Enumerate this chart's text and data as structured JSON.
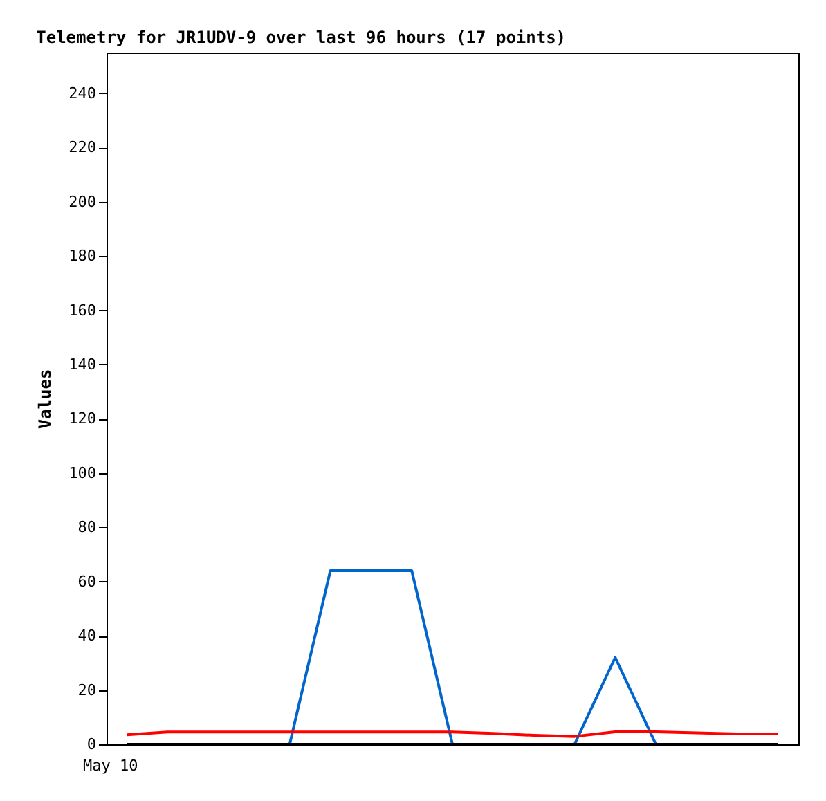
{
  "chart_data": {
    "type": "line",
    "title": "Telemetry for JR1UDV-9 over last 96 hours (17 points)",
    "ylabel": "Values",
    "categories": [
      null,
      null,
      null,
      null,
      null,
      null,
      null,
      null,
      null,
      null,
      null,
      null,
      null,
      null,
      null,
      null,
      null
    ],
    "series": [
      {
        "color": "#0066cc",
        "values": [
          null,
          null,
          null,
          null,
          0,
          64,
          64,
          64,
          0,
          null,
          null,
          0,
          32,
          0,
          null,
          null,
          null
        ]
      },
      {
        "color": "#ff0000",
        "values": [
          3.5,
          4.5,
          4.5,
          4.5,
          4.5,
          4.5,
          4.5,
          4.5,
          4.5,
          4.0,
          3.3,
          2.9,
          4.6,
          4.6,
          4.2,
          3.8,
          3.8
        ]
      },
      {
        "color": "#000000",
        "values": [
          0,
          0,
          0,
          0,
          0,
          0,
          0,
          0,
          0,
          0,
          0,
          0,
          0,
          0,
          0,
          0,
          0
        ]
      }
    ],
    "annotations": [
      "May 10"
    ],
    "ylim": [
      0,
      255
    ],
    "yticks": [
      0,
      20,
      40,
      60,
      80,
      100,
      120,
      140,
      160,
      180,
      200,
      220,
      240
    ],
    "grid": false,
    "marker": "none",
    "line_style": "solid"
  }
}
